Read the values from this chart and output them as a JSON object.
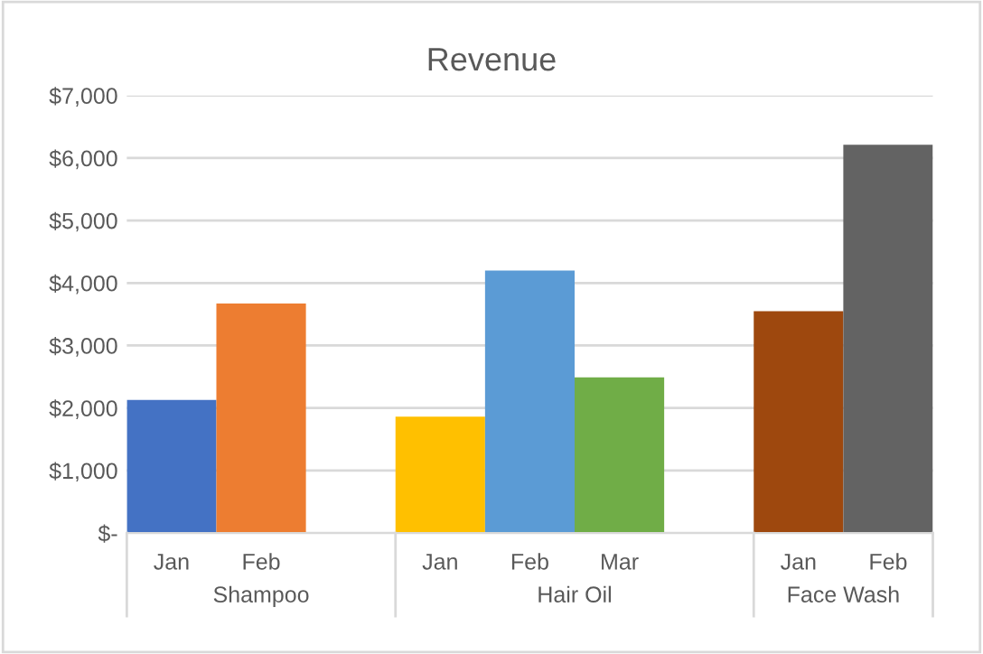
{
  "chart_data": {
    "type": "bar",
    "title": "Revenue",
    "categories": [
      "Jan",
      "Feb",
      null,
      "Jan",
      "Feb",
      "Mar",
      null,
      "Jan",
      "Feb"
    ],
    "values": [
      2130,
      3670,
      null,
      1860,
      4200,
      2490,
      null,
      3550,
      6210
    ],
    "colors": [
      "#4472c4",
      "#ed7d31",
      "#ffffff",
      "#ffc000",
      "#5b9bd5",
      "#70ad47",
      "#ffffff",
      "#9e480e",
      "#636363"
    ],
    "annotations": [
      "Shampoo",
      "Hair Oil",
      "Face Wash"
    ],
    "ylim": [
      0,
      7000
    ],
    "yticks": [
      {
        "value": 0,
        "label": "$-"
      },
      {
        "value": 1000,
        "label": "$1,000"
      },
      {
        "value": 2000,
        "label": "$2,000"
      },
      {
        "value": 3000,
        "label": "$3,000"
      },
      {
        "value": 4000,
        "label": "$4,000"
      },
      {
        "value": 5000,
        "label": "$5,000"
      },
      {
        "value": 6000,
        "label": "$6,000"
      },
      {
        "value": 7000,
        "label": "$7,000"
      }
    ],
    "grid": "y",
    "legend": false
  }
}
